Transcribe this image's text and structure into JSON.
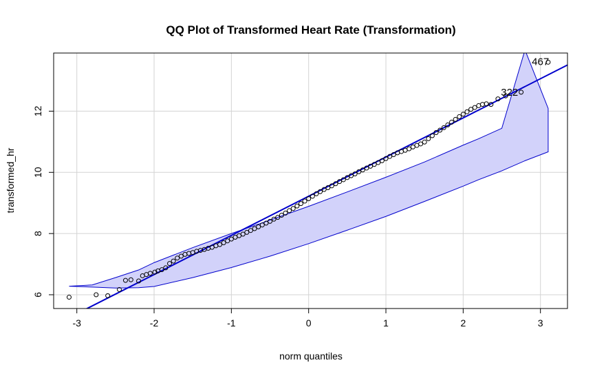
{
  "chart_data": {
    "type": "scatter",
    "title": "QQ Plot of Transformed Heart Rate (Transformation)",
    "xlabel": "norm quantiles",
    "ylabel": "transformed_hr",
    "xlim": [
      -3.3,
      3.35
    ],
    "ylim": [
      5.55,
      13.9
    ],
    "x_ticks": [
      -3,
      -2,
      -1,
      0,
      1,
      2,
      3
    ],
    "y_ticks": [
      6,
      8,
      10,
      12
    ],
    "grid": true,
    "reference_line": {
      "intercept": 9.22,
      "slope": 1.28,
      "color": "#0000cc"
    },
    "confidence_band": {
      "x": [
        -3.1,
        -2.8,
        -2.5,
        -2.2,
        -2.0,
        -1.5,
        -1.0,
        -0.5,
        0.0,
        0.5,
        1.0,
        1.5,
        2.0,
        2.2,
        2.5,
        2.8,
        3.1
      ],
      "upper": [
        6.28,
        6.32,
        6.56,
        6.81,
        7.05,
        7.54,
        8.0,
        8.44,
        8.89,
        9.36,
        9.84,
        10.34,
        10.89,
        11.1,
        11.44,
        11.83,
        12.09
      ],
      "lower": [
        6.28,
        6.25,
        6.22,
        6.23,
        6.27,
        6.56,
        6.89,
        7.26,
        7.67,
        8.11,
        8.56,
        9.05,
        9.55,
        9.76,
        10.05,
        10.38,
        10.67
      ],
      "upper_display_max": 14.0,
      "fill": "#d2d2fa",
      "stroke": "#0000cc"
    },
    "points": [
      {
        "x": -3.1,
        "y": 5.92
      },
      {
        "x": -2.75,
        "y": 6.0
      },
      {
        "x": -2.6,
        "y": 5.97
      },
      {
        "x": -2.45,
        "y": 6.17
      },
      {
        "x": -2.37,
        "y": 6.47
      },
      {
        "x": -2.3,
        "y": 6.49
      },
      {
        "x": -2.2,
        "y": 6.45
      },
      {
        "x": -2.15,
        "y": 6.62
      },
      {
        "x": -2.1,
        "y": 6.66
      },
      {
        "x": -2.05,
        "y": 6.7
      },
      {
        "x": -1.99,
        "y": 6.74
      },
      {
        "x": -1.95,
        "y": 6.78
      },
      {
        "x": -1.9,
        "y": 6.82
      },
      {
        "x": -1.85,
        "y": 6.88
      },
      {
        "x": -1.8,
        "y": 7.02
      },
      {
        "x": -1.75,
        "y": 7.1
      },
      {
        "x": -1.7,
        "y": 7.2
      },
      {
        "x": -1.65,
        "y": 7.26
      },
      {
        "x": -1.6,
        "y": 7.32
      },
      {
        "x": -1.55,
        "y": 7.35
      },
      {
        "x": -1.5,
        "y": 7.38
      },
      {
        "x": -1.45,
        "y": 7.42
      },
      {
        "x": -1.4,
        "y": 7.45
      },
      {
        "x": -1.35,
        "y": 7.48
      },
      {
        "x": -1.3,
        "y": 7.52
      },
      {
        "x": -1.25,
        "y": 7.55
      },
      {
        "x": -1.2,
        "y": 7.6
      },
      {
        "x": -1.15,
        "y": 7.64
      },
      {
        "x": -1.1,
        "y": 7.7
      },
      {
        "x": -1.05,
        "y": 7.76
      },
      {
        "x": -1.0,
        "y": 7.82
      },
      {
        "x": -0.95,
        "y": 7.88
      },
      {
        "x": -0.9,
        "y": 7.93
      },
      {
        "x": -0.85,
        "y": 7.98
      },
      {
        "x": -0.8,
        "y": 8.04
      },
      {
        "x": -0.75,
        "y": 8.1
      },
      {
        "x": -0.7,
        "y": 8.16
      },
      {
        "x": -0.65,
        "y": 8.22
      },
      {
        "x": -0.6,
        "y": 8.28
      },
      {
        "x": -0.55,
        "y": 8.34
      },
      {
        "x": -0.5,
        "y": 8.4
      },
      {
        "x": -0.45,
        "y": 8.47
      },
      {
        "x": -0.4,
        "y": 8.53
      },
      {
        "x": -0.35,
        "y": 8.6
      },
      {
        "x": -0.3,
        "y": 8.67
      },
      {
        "x": -0.25,
        "y": 8.75
      },
      {
        "x": -0.2,
        "y": 8.82
      },
      {
        "x": -0.15,
        "y": 8.9
      },
      {
        "x": -0.1,
        "y": 8.98
      },
      {
        "x": -0.05,
        "y": 9.06
      },
      {
        "x": 0.0,
        "y": 9.14
      },
      {
        "x": 0.05,
        "y": 9.22
      },
      {
        "x": 0.1,
        "y": 9.3
      },
      {
        "x": 0.15,
        "y": 9.37
      },
      {
        "x": 0.2,
        "y": 9.44
      },
      {
        "x": 0.25,
        "y": 9.5
      },
      {
        "x": 0.3,
        "y": 9.56
      },
      {
        "x": 0.35,
        "y": 9.63
      },
      {
        "x": 0.4,
        "y": 9.7
      },
      {
        "x": 0.45,
        "y": 9.76
      },
      {
        "x": 0.5,
        "y": 9.83
      },
      {
        "x": 0.55,
        "y": 9.89
      },
      {
        "x": 0.6,
        "y": 9.95
      },
      {
        "x": 0.65,
        "y": 10.02
      },
      {
        "x": 0.7,
        "y": 10.08
      },
      {
        "x": 0.75,
        "y": 10.14
      },
      {
        "x": 0.8,
        "y": 10.2
      },
      {
        "x": 0.85,
        "y": 10.26
      },
      {
        "x": 0.9,
        "y": 10.32
      },
      {
        "x": 0.95,
        "y": 10.38
      },
      {
        "x": 1.0,
        "y": 10.45
      },
      {
        "x": 1.05,
        "y": 10.52
      },
      {
        "x": 1.1,
        "y": 10.58
      },
      {
        "x": 1.15,
        "y": 10.64
      },
      {
        "x": 1.2,
        "y": 10.68
      },
      {
        "x": 1.25,
        "y": 10.72
      },
      {
        "x": 1.3,
        "y": 10.77
      },
      {
        "x": 1.35,
        "y": 10.83
      },
      {
        "x": 1.4,
        "y": 10.88
      },
      {
        "x": 1.45,
        "y": 10.93
      },
      {
        "x": 1.5,
        "y": 10.99
      },
      {
        "x": 1.55,
        "y": 11.1
      },
      {
        "x": 1.6,
        "y": 11.2
      },
      {
        "x": 1.65,
        "y": 11.3
      },
      {
        "x": 1.7,
        "y": 11.38
      },
      {
        "x": 1.75,
        "y": 11.46
      },
      {
        "x": 1.8,
        "y": 11.55
      },
      {
        "x": 1.85,
        "y": 11.64
      },
      {
        "x": 1.9,
        "y": 11.73
      },
      {
        "x": 1.95,
        "y": 11.82
      },
      {
        "x": 2.0,
        "y": 11.9
      },
      {
        "x": 2.05,
        "y": 11.98
      },
      {
        "x": 2.1,
        "y": 12.06
      },
      {
        "x": 2.15,
        "y": 12.12
      },
      {
        "x": 2.2,
        "y": 12.18
      },
      {
        "x": 2.25,
        "y": 12.22
      },
      {
        "x": 2.3,
        "y": 12.24
      },
      {
        "x": 2.36,
        "y": 12.22
      },
      {
        "x": 2.45,
        "y": 12.4
      },
      {
        "x": 2.55,
        "y": 12.5
      },
      {
        "x": 2.75,
        "y": 12.62
      },
      {
        "x": 3.1,
        "y": 13.6
      }
    ],
    "annotations": [
      {
        "text": "467",
        "x": 3.0,
        "y": 13.62
      },
      {
        "text": "322",
        "x": 2.6,
        "y": 12.62
      }
    ]
  }
}
